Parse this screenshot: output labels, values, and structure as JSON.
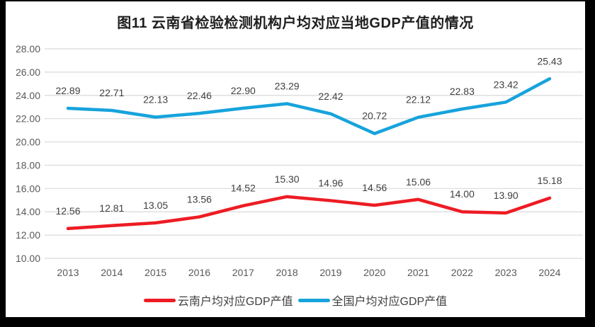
{
  "title": "图11 云南省检验检测机构户均对应当地GDP产值的情况",
  "chart_data": {
    "type": "line",
    "title": "图11 云南省检验检测机构户均对应当地GDP产值的情况",
    "categories": [
      "2013",
      "2014",
      "2015",
      "2016",
      "2017",
      "2018",
      "2019",
      "2020",
      "2021",
      "2022",
      "2023",
      "2024"
    ],
    "series": [
      {
        "name": "云南户均对应GDP产值",
        "color": "#ED1C24",
        "values": [
          12.56,
          12.81,
          13.05,
          13.56,
          14.52,
          15.3,
          14.96,
          14.56,
          15.06,
          14.0,
          13.9,
          15.18
        ]
      },
      {
        "name": "全国户均对应GDP产值",
        "color": "#17A3DC",
        "values": [
          22.89,
          22.71,
          22.13,
          22.46,
          22.9,
          23.29,
          22.42,
          20.72,
          22.12,
          22.83,
          23.42,
          25.43
        ]
      }
    ],
    "ylim": [
      10,
      28
    ],
    "ytick_step": 2,
    "yticks": [
      "28.00",
      "26.00",
      "24.00",
      "22.00",
      "20.00",
      "18.00",
      "16.00",
      "14.00",
      "12.00",
      "10.00"
    ],
    "xlabel": "",
    "ylabel": "",
    "grid": true,
    "data_labels": true,
    "data_label_decimals": 2,
    "legend_position": "bottom"
  },
  "colors": {
    "frame": "#000000",
    "background": "#ffffff",
    "gridline": "#d9d9d9",
    "axis_text": "#595959",
    "data_label_text": "#404040",
    "title_text": "#1f1f1f"
  }
}
